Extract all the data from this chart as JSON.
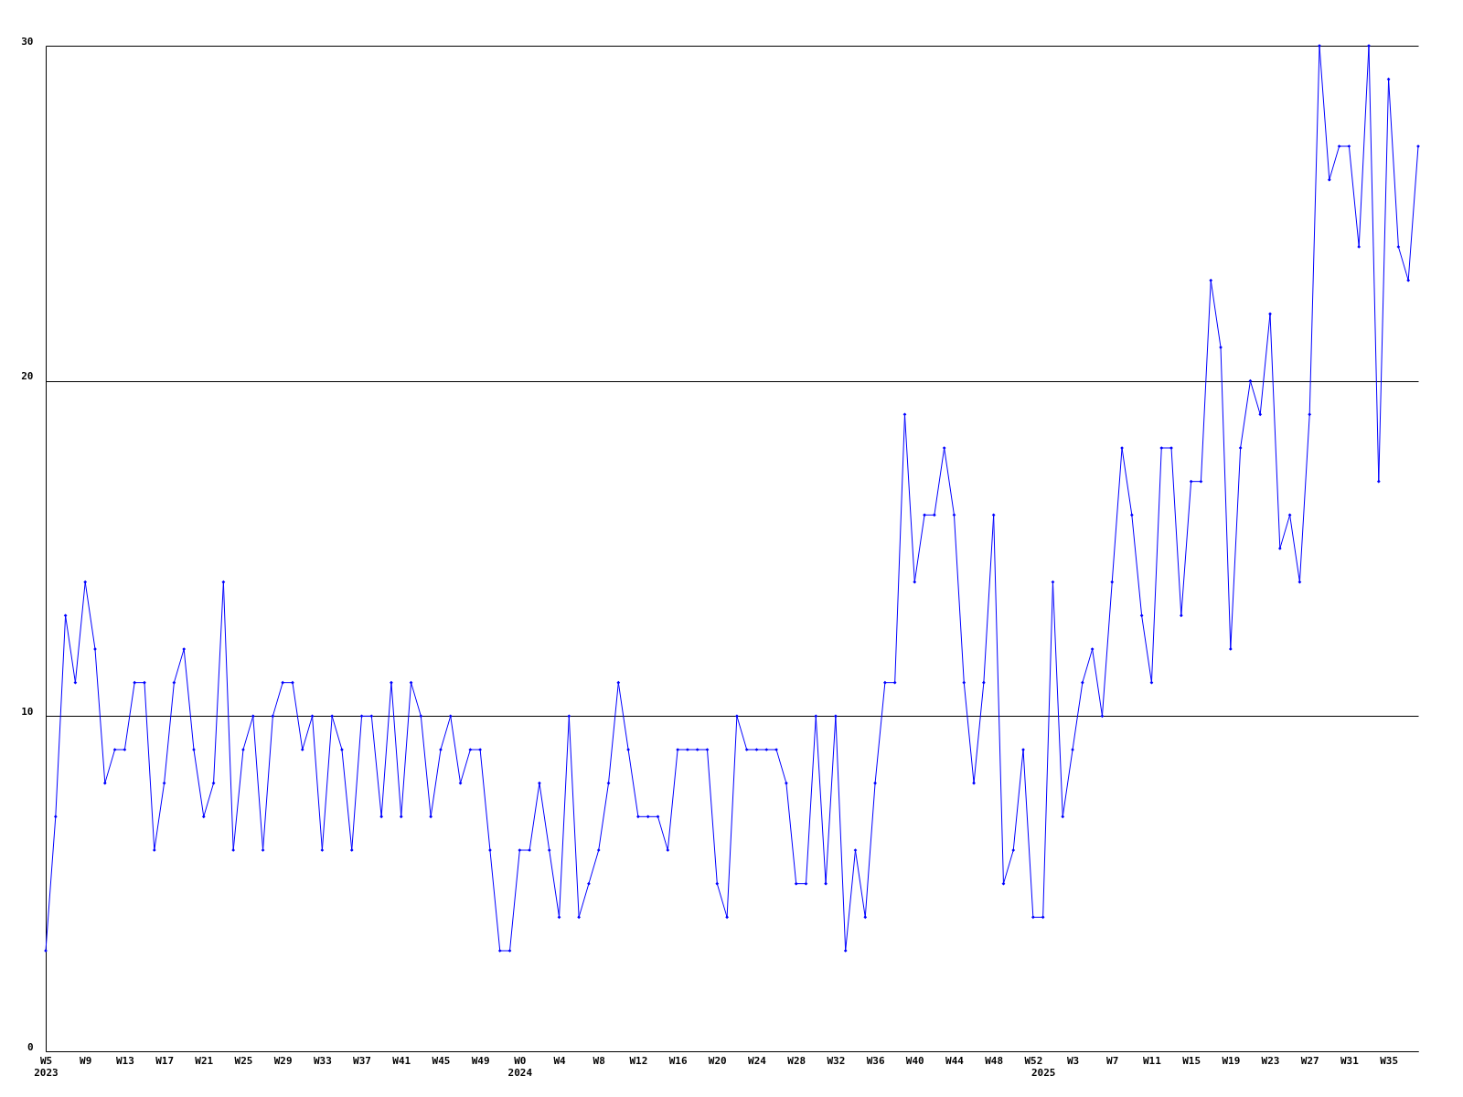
{
  "chart_data": {
    "type": "line",
    "categories": [
      "W5\n2023",
      null,
      null,
      null,
      "W9",
      null,
      null,
      null,
      "W13",
      null,
      null,
      null,
      "W17",
      null,
      null,
      null,
      "W21",
      null,
      null,
      null,
      "W25",
      null,
      null,
      null,
      "W29",
      null,
      null,
      null,
      "W33",
      null,
      null,
      null,
      "W37",
      null,
      null,
      null,
      "W41",
      null,
      null,
      null,
      "W45",
      null,
      null,
      null,
      "W49",
      null,
      null,
      null,
      "W0\n2024",
      null,
      null,
      null,
      "W4",
      null,
      null,
      null,
      "W8",
      null,
      null,
      null,
      "W12",
      null,
      null,
      null,
      "W16",
      null,
      null,
      null,
      "W20",
      null,
      null,
      null,
      "W24",
      null,
      null,
      null,
      "W28",
      null,
      null,
      null,
      "W32",
      null,
      null,
      null,
      "W36",
      null,
      null,
      null,
      "W40",
      null,
      null,
      null,
      "W44",
      null,
      null,
      null,
      "W48",
      null,
      null,
      null,
      "W52",
      "\n2025",
      null,
      null,
      "W3",
      null,
      null,
      null,
      "W7",
      null,
      null,
      null,
      "W11",
      null,
      null,
      null,
      "W15",
      null,
      null,
      null,
      "W19",
      null,
      null,
      null,
      "W23",
      null,
      null,
      null,
      "W27",
      null,
      null,
      null,
      "W31",
      null,
      null,
      null,
      "W35",
      null,
      null,
      null
    ],
    "series": [
      {
        "color": "#0000ff",
        "values": [
          3,
          7,
          13,
          11,
          14,
          12,
          8,
          9,
          9,
          11,
          11,
          6,
          8,
          11,
          12,
          9,
          7,
          8,
          14,
          6,
          9,
          10,
          6,
          10,
          11,
          11,
          9,
          10,
          6,
          10,
          9,
          6,
          10,
          10,
          7,
          11,
          7,
          11,
          10,
          7,
          9,
          10,
          8,
          9,
          9,
          6,
          3,
          3,
          6,
          6,
          8,
          6,
          4,
          10,
          4,
          5,
          6,
          8,
          11,
          9,
          7,
          7,
          7,
          6,
          9,
          9,
          9,
          9,
          5,
          4,
          10,
          9,
          9,
          9,
          9,
          8,
          5,
          5,
          10,
          5,
          10,
          3,
          6,
          4,
          8,
          11,
          11,
          19,
          14,
          16,
          16,
          18,
          16,
          11,
          8,
          11,
          16,
          5,
          6,
          9,
          4,
          4,
          14,
          7,
          9,
          11,
          12,
          10,
          14,
          18,
          16,
          13,
          11,
          18,
          18,
          13,
          17,
          17,
          23,
          21,
          12,
          18,
          20,
          19,
          22,
          15,
          16,
          14,
          19,
          30,
          26,
          27,
          27,
          24,
          30,
          17,
          29,
          24,
          23,
          27
        ]
      }
    ],
    "ylim": [
      0,
      30
    ],
    "yticks": [
      0,
      10,
      20,
      30
    ],
    "grid": "y",
    "marker": "diamond"
  }
}
